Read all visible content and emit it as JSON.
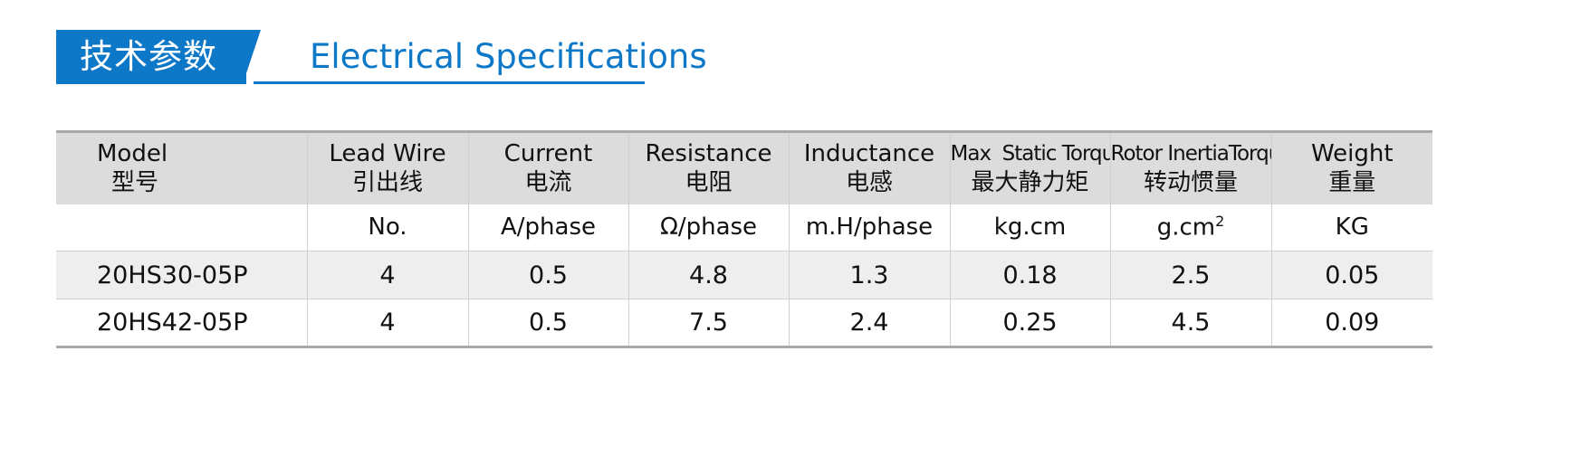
{
  "heading": {
    "title_cn": "技术参数",
    "title_en": "Electrical Specifications",
    "accent_color": "#0d78c8"
  },
  "table": {
    "columns": [
      {
        "en": "Model",
        "cn": "型号",
        "unit": ""
      },
      {
        "en": "Lead Wire",
        "cn": "引出线",
        "unit": "No."
      },
      {
        "en": "Current",
        "cn": "电流",
        "unit": "A/phase"
      },
      {
        "en": "Resistance",
        "cn": "电阻",
        "unit": "Ω/phase"
      },
      {
        "en": "Inductance",
        "cn": "电感",
        "unit": "m.H/phase"
      },
      {
        "en": "Max  Static Torque",
        "cn": "最大静力矩",
        "unit": "kg.cm"
      },
      {
        "en": "Rotor InertiaTorque",
        "cn": "转动惯量",
        "unit": "g.cm",
        "unit_sup": "2"
      },
      {
        "en": "Weight",
        "cn": "重量",
        "unit": "KG"
      }
    ],
    "rows": [
      [
        "20HS30-05P",
        "4",
        "0.5",
        "4.8",
        "1.3",
        "0.18",
        "2.5",
        "0.05"
      ],
      [
        "20HS42-05P",
        "4",
        "0.5",
        "7.5",
        "2.4",
        "0.25",
        "4.5",
        "0.09"
      ]
    ]
  }
}
